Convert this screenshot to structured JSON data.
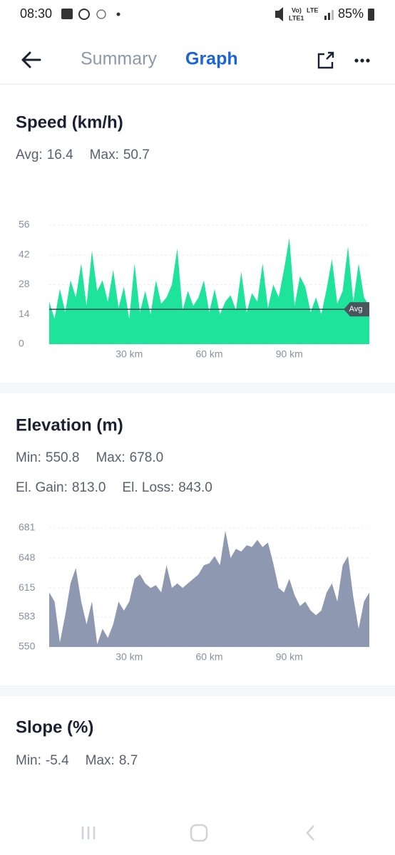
{
  "status_bar": {
    "time": "08:30",
    "network": [
      "Vo)",
      "LTE1",
      "LTE"
    ],
    "battery": "85%"
  },
  "header": {
    "tabs": [
      "Summary",
      "Graph"
    ],
    "active_tab": 1
  },
  "chart_data": [
    {
      "type": "area",
      "title": "Speed (km/h)",
      "stats": [
        [
          {
            "label": "Avg:",
            "value": 16.4
          },
          {
            "label": "Max:",
            "value": 50.7
          }
        ]
      ],
      "avg_label": "Avg",
      "color": "#1de39b",
      "x": [
        0,
        2,
        4,
        6,
        8,
        10,
        12,
        14,
        16,
        18,
        20,
        22,
        24,
        26,
        28,
        30,
        32,
        34,
        36,
        38,
        40,
        42,
        44,
        46,
        48,
        50,
        52,
        54,
        56,
        58,
        60,
        62,
        64,
        66,
        68,
        70,
        72,
        74,
        76,
        78,
        80,
        82,
        84,
        86,
        88,
        90,
        92,
        94,
        96,
        98,
        100,
        102,
        104,
        106,
        108,
        110,
        112,
        114,
        116,
        118,
        120
      ],
      "values": [
        20,
        12,
        26,
        15,
        30,
        22,
        38,
        18,
        44,
        25,
        30,
        20,
        35,
        17,
        27,
        12,
        38,
        15,
        25,
        14,
        30,
        19,
        22,
        28,
        45,
        16,
        25,
        18,
        22,
        30,
        15,
        26,
        14,
        20,
        23,
        16,
        34,
        15,
        24,
        20,
        38,
        17,
        28,
        22,
        35,
        50,
        18,
        32,
        27,
        15,
        22,
        14,
        26,
        40,
        19,
        25,
        46,
        20,
        38,
        22,
        18
      ],
      "xlim": [
        0,
        120
      ],
      "xticks": [
        {
          "value": 30,
          "label": "30 km"
        },
        {
          "value": 60,
          "label": "60 km"
        },
        {
          "value": 90,
          "label": "90 km"
        }
      ],
      "ylim": [
        0,
        56
      ],
      "yticks": [
        0,
        14,
        28,
        42,
        56
      ],
      "grid": true
    },
    {
      "type": "area",
      "title": "Elevation (m)",
      "stats": [
        [
          {
            "label": "Min:",
            "value": "550.8"
          },
          {
            "label": "Max:",
            "value": "678.0"
          }
        ],
        [
          {
            "label": "El. Gain:",
            "value": "813.0"
          },
          {
            "label": "El. Loss:",
            "value": "843.0"
          }
        ]
      ],
      "color": "#8e98b0",
      "x": [
        0,
        2,
        4,
        6,
        8,
        10,
        12,
        14,
        16,
        18,
        20,
        22,
        24,
        26,
        28,
        30,
        32,
        34,
        36,
        38,
        40,
        42,
        44,
        46,
        48,
        50,
        52,
        54,
        56,
        58,
        60,
        62,
        64,
        66,
        68,
        70,
        72,
        74,
        76,
        78,
        80,
        82,
        84,
        86,
        88,
        90,
        92,
        94,
        96,
        98,
        100,
        102,
        104,
        106,
        108,
        110,
        112,
        114,
        116,
        118,
        120
      ],
      "values": [
        610,
        600,
        555,
        585,
        620,
        637,
        600,
        575,
        600,
        553,
        570,
        560,
        575,
        600,
        590,
        600,
        625,
        630,
        620,
        615,
        618,
        610,
        640,
        615,
        620,
        615,
        620,
        625,
        630,
        640,
        642,
        650,
        640,
        678,
        648,
        658,
        655,
        662,
        660,
        668,
        660,
        665,
        642,
        615,
        610,
        625,
        607,
        595,
        600,
        590,
        585,
        590,
        610,
        620,
        600,
        640,
        650,
        605,
        570,
        600,
        610
      ],
      "xlim": [
        0,
        120
      ],
      "xticks": [
        {
          "value": 30,
          "label": "30 km"
        },
        {
          "value": 60,
          "label": "60 km"
        },
        {
          "value": 90,
          "label": "90 km"
        }
      ],
      "ylim": [
        550,
        681
      ],
      "yticks": [
        550,
        583,
        615,
        648,
        681
      ],
      "grid": true
    }
  ],
  "slope": {
    "title": "Slope (%)",
    "stats": [
      [
        {
          "label": "Min:",
          "value": "-5.4"
        },
        {
          "label": "Max:",
          "value": "8.7"
        }
      ]
    ]
  }
}
